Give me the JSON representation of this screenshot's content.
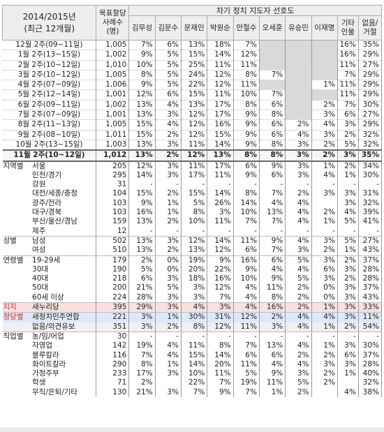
{
  "top_note": "",
  "header": {
    "period_label_1": "2014/2015년",
    "period_label_2": "(최근 12개월)",
    "sample_label_1": "목표할당",
    "sample_label_2": "사례수",
    "sample_label_3": "(명)",
    "group_title": "차기 정치 지도자 선호도",
    "candidates": [
      "김무성",
      "김문수",
      "문재인",
      "박원순",
      "안철수",
      "오세훈",
      "유승민",
      "이재명"
    ],
    "etc_label_1": "기타",
    "etc_label_2": "인물",
    "none_label_1": "없음/",
    "none_label_2": "거절"
  },
  "monthly_rows": [
    {
      "label": "12월 2주(09~11일)",
      "n": "1,005",
      "vals": [
        "7%",
        "6%",
        "13%",
        "18%",
        "7%",
        "",
        "",
        "",
        "16%",
        "35%"
      ]
    },
    {
      "label": "1월 2주(13~15일)",
      "n": "1,002",
      "vals": [
        "9%",
        "5%",
        "15%",
        "14%",
        "12%",
        "",
        "",
        "",
        "16%",
        "29%"
      ]
    },
    {
      "label": "2월 2주(10~12일)",
      "n": "1,010",
      "vals": [
        "10%",
        "5%",
        "25%",
        "11%",
        "11%",
        "",
        "",
        "",
        "11%",
        "27%"
      ]
    },
    {
      "label": "3월 2주(10~12일)",
      "n": "1,005",
      "vals": [
        "8%",
        "5%",
        "24%",
        "12%",
        "8%",
        "7%",
        "",
        "",
        "7%",
        "29%"
      ]
    },
    {
      "label": "4월 2주(07~09일)",
      "n": "1,006",
      "vals": [
        "9%",
        "5%",
        "22%",
        "12%",
        "11%",
        "",
        "",
        "1%",
        "11%",
        "29%"
      ]
    },
    {
      "label": "5월 2주(12~14일)",
      "n": "1,001",
      "vals": [
        "12%",
        "6%",
        "15%",
        "11%",
        "10%",
        "7%",
        "",
        "",
        "11%",
        "29%"
      ]
    },
    {
      "label": "6월 2주(09~11일)",
      "n": "1,002",
      "vals": [
        "13%",
        "4%",
        "13%",
        "17%",
        "8%",
        "6%",
        "",
        "2%",
        "7%",
        "30%"
      ]
    },
    {
      "label": "7월 2주(07~09일)",
      "n": "1,001",
      "vals": [
        "13%",
        "3%",
        "12%",
        "17%",
        "9%",
        "8%",
        "",
        "3%",
        "6%",
        "27%"
      ]
    },
    {
      "label": "8월 2주(11~13일)",
      "n": "1,005",
      "vals": [
        "15%",
        "4%",
        "12%",
        "16%",
        "9%",
        "6%",
        "2%",
        "4%",
        "3%",
        "29%"
      ]
    },
    {
      "label": "9월 2주(08~10일)",
      "n": "1,011",
      "vals": [
        "15%",
        "2%",
        "12%",
        "15%",
        "9%",
        "6%",
        "4%",
        "3%",
        "2%",
        "32%"
      ]
    },
    {
      "label": "10월 2주(13~15일)",
      "n": "1,003",
      "vals": [
        "13%",
        "3%",
        "11%",
        "14%",
        "9%",
        "8%",
        "3%",
        "2%",
        "5%",
        "32%"
      ]
    }
  ],
  "current_row": {
    "label": "11월 2주(10~12일)",
    "n": "1,012",
    "vals": [
      "13%",
      "2%",
      "12%",
      "13%",
      "8%",
      "8%",
      "3%",
      "2%",
      "3%",
      "35%"
    ]
  },
  "groups": [
    {
      "cat": "지역별",
      "cls": "",
      "rows": [
        {
          "sub": "서울",
          "n": "205",
          "vals": [
            "12%",
            "3%",
            "11%",
            "17%",
            "6%",
            "9%",
            "3%",
            "1%",
            "2%",
            "34%"
          ]
        },
        {
          "sub": "인천/경기",
          "n": "295",
          "vals": [
            "14%",
            "3%",
            "17%",
            "11%",
            "9%",
            "6%",
            "3%",
            "4%",
            "1%",
            "30%"
          ]
        },
        {
          "sub": "강원",
          "n": "31",
          "vals": [
            "-",
            "-",
            "-",
            "-",
            "-",
            "-",
            "-",
            "-",
            "-",
            "-"
          ]
        },
        {
          "sub": "대전/세종/충청",
          "n": "104",
          "vals": [
            "15%",
            "2%",
            "15%",
            "14%",
            "8%",
            "7%",
            "2%",
            "3%",
            "3%",
            "31%"
          ]
        },
        {
          "sub": "광주/전라",
          "n": "103",
          "vals": [
            "9%",
            "1%",
            "5%",
            "26%",
            "14%",
            "4%",
            "4%",
            "",
            "3%",
            "32%"
          ]
        },
        {
          "sub": "대구/경북",
          "n": "103",
          "vals": [
            "16%",
            "1%",
            "8%",
            "3%",
            "10%",
            "13%",
            "4%",
            "2%",
            "4%",
            "39%"
          ]
        },
        {
          "sub": "부산/울산/경남",
          "n": "159",
          "vals": [
            "13%",
            "2%",
            "10%",
            "11%",
            "7%",
            "7%",
            "4%",
            "1%",
            "5%",
            "41%"
          ]
        },
        {
          "sub": "제주",
          "n": "12",
          "vals": [
            "-",
            "-",
            "-",
            "-",
            "-",
            "-",
            "-",
            "-",
            "-",
            "-"
          ]
        }
      ]
    },
    {
      "cat": "성별",
      "cls": "",
      "rows": [
        {
          "sub": "남성",
          "n": "502",
          "vals": [
            "13%",
            "3%",
            "12%",
            "14%",
            "11%",
            "9%",
            "4%",
            "3%",
            "5%",
            "27%"
          ]
        },
        {
          "sub": "여성",
          "n": "510",
          "vals": [
            "13%",
            "2%",
            "13%",
            "12%",
            "6%",
            "7%",
            "3%",
            "2%",
            "1%",
            "43%"
          ]
        }
      ]
    },
    {
      "cat": "연령별",
      "cls": "",
      "rows": [
        {
          "sub": "19-29세",
          "n": "179",
          "vals": [
            "2%",
            "0%",
            "19%",
            "9%",
            "16%",
            "6%",
            "5%",
            "3%",
            "2%",
            "37%"
          ]
        },
        {
          "sub": "30대",
          "n": "190",
          "vals": [
            "5%",
            "0%",
            "20%",
            "22%",
            "9%",
            "4%",
            "4%",
            "6%",
            "3%",
            "28%"
          ]
        },
        {
          "sub": "40대",
          "n": "218",
          "vals": [
            "6%",
            "3%",
            "18%",
            "16%",
            "10%",
            "9%",
            "5%",
            "3%",
            "2%",
            "28%"
          ]
        },
        {
          "sub": "50대",
          "n": "200",
          "vals": [
            "21%",
            "5%",
            "3%",
            "12%",
            "4%",
            "11%",
            "2%",
            "0%",
            "3%",
            "37%"
          ]
        },
        {
          "sub": "60세 이상",
          "n": "224",
          "vals": [
            "28%",
            "3%",
            "3%",
            "7%",
            "4%",
            "8%",
            "2%",
            "0%",
            "3%",
            "43%"
          ]
        }
      ]
    },
    {
      "cat": "지지",
      "cls": "red",
      "rows": [
        {
          "sub": "새누리당",
          "n": "395",
          "vals": [
            "29%",
            "3%",
            "4%",
            "3%",
            "4%",
            "16%",
            "2%",
            "1%",
            "3%",
            "33%"
          ],
          "hl": "red"
        }
      ]
    },
    {
      "cat": "정당별",
      "cls": "red",
      "rows": [
        {
          "sub": "새정치민주연합",
          "n": "221",
          "vals": [
            "3%",
            "1%",
            "30%",
            "31%",
            "12%",
            "2%",
            "4%",
            "4%",
            "3%",
            "11%"
          ],
          "hl": "blue"
        },
        {
          "sub": "없음/의견유보",
          "n": "351",
          "vals": [
            "3%",
            "2%",
            "8%",
            "12%",
            "11%",
            "3%",
            "4%",
            "1%",
            "2%",
            "54%"
          ],
          "hl": "gray"
        }
      ]
    },
    {
      "cat": "직업별",
      "cls": "",
      "rows": [
        {
          "sub": "농/임/어업",
          "n": "30",
          "vals": [
            "-",
            "-",
            "-",
            "-",
            "-",
            "-",
            "-",
            "-",
            "-",
            "-"
          ]
        },
        {
          "sub": "자영업",
          "n": "142",
          "vals": [
            "19%",
            "4%",
            "11%",
            "8%",
            "7%",
            "13%",
            "4%",
            "1%",
            "3%",
            "30%"
          ]
        },
        {
          "sub": "블루칼라",
          "n": "116",
          "vals": [
            "7%",
            "4%",
            "15%",
            "14%",
            "6%",
            "6%",
            "2%",
            "2%",
            "6%",
            "37%"
          ]
        },
        {
          "sub": "화이트칼라",
          "n": "290",
          "vals": [
            "8%",
            "1%",
            "14%",
            "20%",
            "11%",
            "4%",
            "4%",
            "3%",
            "3%",
            "28%"
          ]
        },
        {
          "sub": "가정주부",
          "n": "233",
          "vals": [
            "17%",
            "3%",
            "10%",
            "11%",
            "5%",
            "9%",
            "3%",
            "2%",
            "1%",
            "40%"
          ]
        },
        {
          "sub": "학생",
          "n": "71",
          "vals": [
            "2%",
            "",
            "22%",
            "7%",
            "19%",
            "11%",
            "5%",
            "2%",
            "",
            "32%"
          ]
        },
        {
          "sub": "무직/은퇴/기타",
          "n": "130",
          "vals": [
            "21%",
            "3%",
            "7%",
            "9%",
            "7%",
            "1%",
            "2%",
            "",
            "4%",
            "38%"
          ]
        }
      ]
    }
  ]
}
